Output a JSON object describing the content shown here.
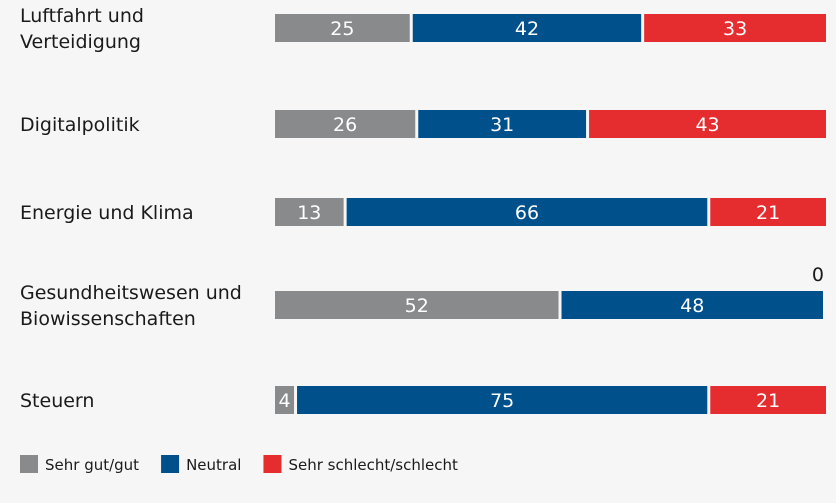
{
  "chart_data": {
    "type": "bar",
    "orientation": "horizontal",
    "stacked": true,
    "title": "",
    "xlabel": "",
    "ylabel": "",
    "xlim": [
      0,
      100
    ],
    "grid": false,
    "legend_position": "bottom-left",
    "categories": [
      [
        "Luftfahrt und",
        "Verteidigung"
      ],
      [
        "Digitalpolitik"
      ],
      [
        "Energie und Klima"
      ],
      [
        "Gesundheitswesen und",
        "Biowissenschaften"
      ],
      [
        "Steuern"
      ]
    ],
    "series": [
      {
        "name": "Sehr gut/gut",
        "color": "#898a8c",
        "values": [
          25,
          26,
          13,
          52,
          4
        ]
      },
      {
        "name": "Neutral",
        "color": "#00508c",
        "values": [
          42,
          31,
          66,
          48,
          75
        ]
      },
      {
        "name": "Sehr schlecht/schlecht",
        "color": "#e52c2e",
        "values": [
          33,
          43,
          21,
          0,
          21
        ]
      }
    ]
  }
}
